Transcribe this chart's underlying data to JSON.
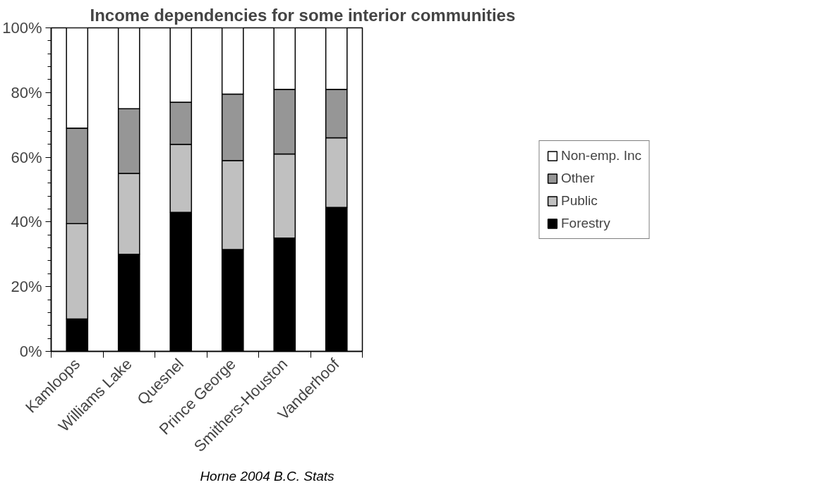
{
  "chart_data": {
    "type": "bar",
    "stacked": true,
    "title": "Income dependencies for some interior communities",
    "categories": [
      "Kamloops",
      "Williams Lake",
      "Quesnel",
      "Prince George",
      "Smithers-Houston",
      "Vanderhoof"
    ],
    "series": [
      {
        "name": "Forestry",
        "color": "#000000",
        "values": [
          10,
          30,
          43,
          31.5,
          35,
          44.5
        ]
      },
      {
        "name": "Public",
        "color": "#c0c0c0",
        "values": [
          29.5,
          25,
          21,
          27.5,
          26,
          21.5
        ]
      },
      {
        "name": "Other",
        "color": "#969696",
        "values": [
          29.5,
          20,
          13,
          20.5,
          20,
          15
        ]
      },
      {
        "name": "Non-emp. Inc",
        "color": "#ffffff",
        "values": [
          31,
          25,
          23,
          20.5,
          19,
          19
        ]
      }
    ],
    "ylim": [
      0,
      100
    ],
    "yticks": [
      {
        "value": 0,
        "label": "0%"
      },
      {
        "value": 4,
        "label": null
      },
      {
        "value": 8,
        "label": null
      },
      {
        "value": 12,
        "label": null
      },
      {
        "value": 16,
        "label": null
      },
      {
        "value": 20,
        "label": "20%"
      },
      {
        "value": 24,
        "label": null
      },
      {
        "value": 28,
        "label": null
      },
      {
        "value": 32,
        "label": null
      },
      {
        "value": 36,
        "label": null
      },
      {
        "value": 40,
        "label": "40%"
      },
      {
        "value": 44,
        "label": null
      },
      {
        "value": 48,
        "label": null
      },
      {
        "value": 52,
        "label": null
      },
      {
        "value": 56,
        "label": null
      },
      {
        "value": 60,
        "label": "60%"
      },
      {
        "value": 64,
        "label": null
      },
      {
        "value": 68,
        "label": null
      },
      {
        "value": 72,
        "label": null
      },
      {
        "value": 76,
        "label": null
      },
      {
        "value": 80,
        "label": "80%"
      },
      {
        "value": 84,
        "label": null
      },
      {
        "value": 88,
        "label": null
      },
      {
        "value": 92,
        "label": null
      },
      {
        "value": 96,
        "label": null
      },
      {
        "value": 100,
        "label": "100%"
      }
    ],
    "grid": false,
    "legend": "right",
    "annotations": [
      "Horne 2004 B.C. Stats"
    ]
  }
}
